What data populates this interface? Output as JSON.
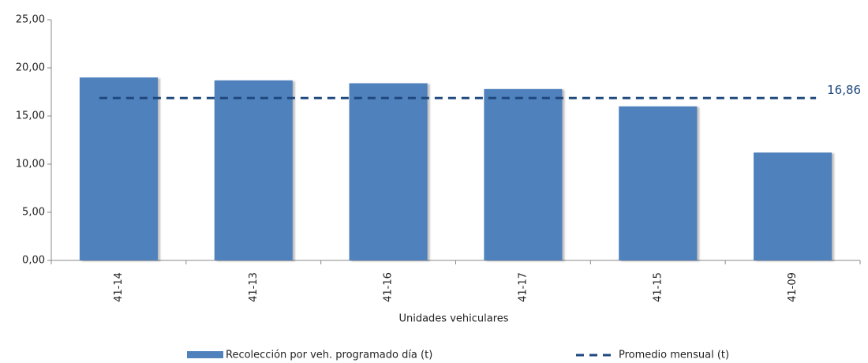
{
  "chart_data": {
    "type": "bar",
    "x_label": "Unidades vehiculares",
    "categories": [
      "41-14",
      "41-13",
      "41-16",
      "41-17",
      "41-15",
      "41-09"
    ],
    "series": [
      {
        "name": "Recolección por veh. programado día (t)",
        "color": "#4f81bd",
        "values": [
          19.0,
          18.7,
          18.4,
          17.8,
          16.0,
          11.2
        ]
      }
    ],
    "average": {
      "name": "Promedio mensual (t)",
      "color": "#1f497d",
      "value": 16.86,
      "value_label": "16,86"
    },
    "ylim": [
      0,
      25
    ],
    "yticks": [
      {
        "value": 0,
        "label": "0,00"
      },
      {
        "value": 5,
        "label": "5,00"
      },
      {
        "value": 10,
        "label": "10,00"
      },
      {
        "value": 15,
        "label": "15,00"
      },
      {
        "value": 20,
        "label": "20,00"
      },
      {
        "value": 25,
        "label": "25,00"
      }
    ],
    "grid": false
  }
}
